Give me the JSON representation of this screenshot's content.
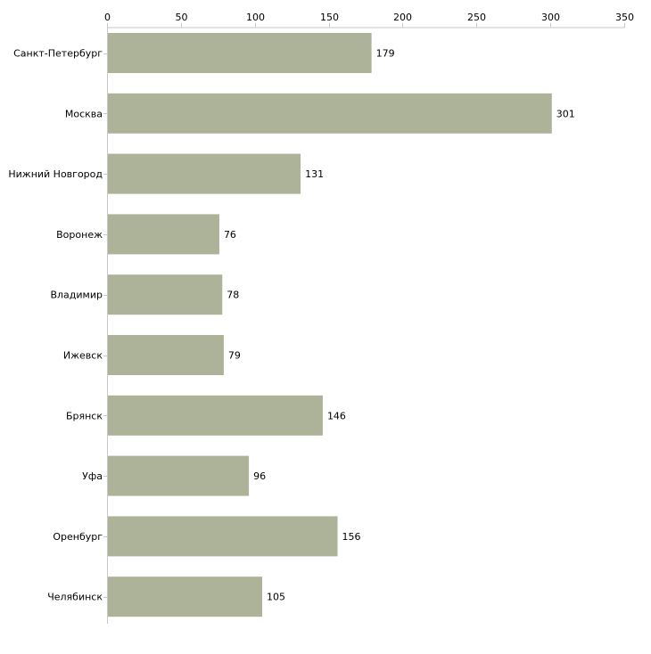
{
  "chart_data": {
    "type": "bar",
    "orientation": "horizontal",
    "title": "",
    "xlabel": "",
    "ylabel": "",
    "categories": [
      "Санкт-Петербург",
      "Москва",
      "Нижний Новгород",
      "Воронеж",
      "Владимир",
      "Ижевск",
      "Брянск",
      "Уфа",
      "Оренбург",
      "Челябинск"
    ],
    "values": [
      179,
      301,
      131,
      76,
      78,
      79,
      146,
      96,
      156,
      105
    ],
    "value_labels": [
      "179",
      "301",
      "131",
      "76",
      "78",
      "79",
      "146",
      "96",
      "156",
      "105"
    ],
    "xlim": [
      0,
      350
    ],
    "x_ticks": [
      0,
      50,
      100,
      150,
      200,
      250,
      300,
      350
    ],
    "x_tick_labels": [
      "0",
      "50",
      "100",
      "150",
      "200",
      "250",
      "300",
      "350"
    ],
    "x_axis_position": "top",
    "grid": false,
    "legend": "none",
    "bar_color": "#adb398",
    "axis_color": "#c8c8c8",
    "text_color": "#000000"
  }
}
